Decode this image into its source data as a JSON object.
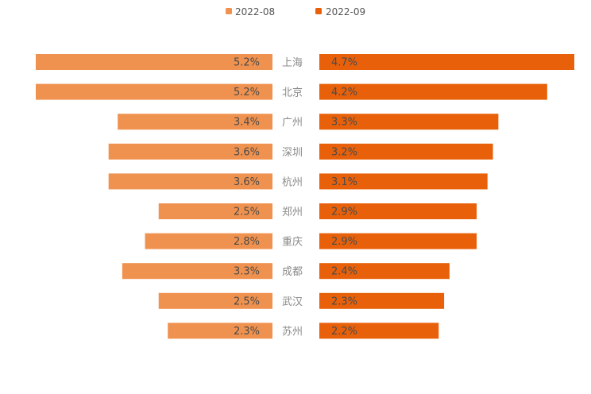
{
  "chart_data": {
    "type": "bar",
    "layout": "diverging-horizontal",
    "categories": [
      "上海",
      "北京",
      "广州",
      "深圳",
      "杭州",
      "郑州",
      "重庆",
      "成都",
      "武汉",
      "苏州"
    ],
    "series": [
      {
        "name": "2022-08",
        "values": [
          5.2,
          5.2,
          3.4,
          3.6,
          3.6,
          2.5,
          2.8,
          3.3,
          2.5,
          2.3
        ],
        "labels": [
          "5.2%",
          "5.2%",
          "3.4%",
          "3.6%",
          "3.6%",
          "2.5%",
          "2.8%",
          "3.3%",
          "2.5%",
          "2.3%"
        ],
        "color": "#F0924F",
        "side": "left"
      },
      {
        "name": "2022-09",
        "values": [
          4.7,
          4.2,
          3.3,
          3.2,
          3.1,
          2.9,
          2.9,
          2.4,
          2.3,
          2.2
        ],
        "labels": [
          "4.7%",
          "4.2%",
          "3.3%",
          "3.2%",
          "3.1%",
          "2.9%",
          "2.9%",
          "2.4%",
          "2.3%",
          "2.2%"
        ],
        "color": "#E8610A",
        "side": "right"
      }
    ],
    "unit": "%",
    "legend_position": "top-center",
    "grid": false
  }
}
